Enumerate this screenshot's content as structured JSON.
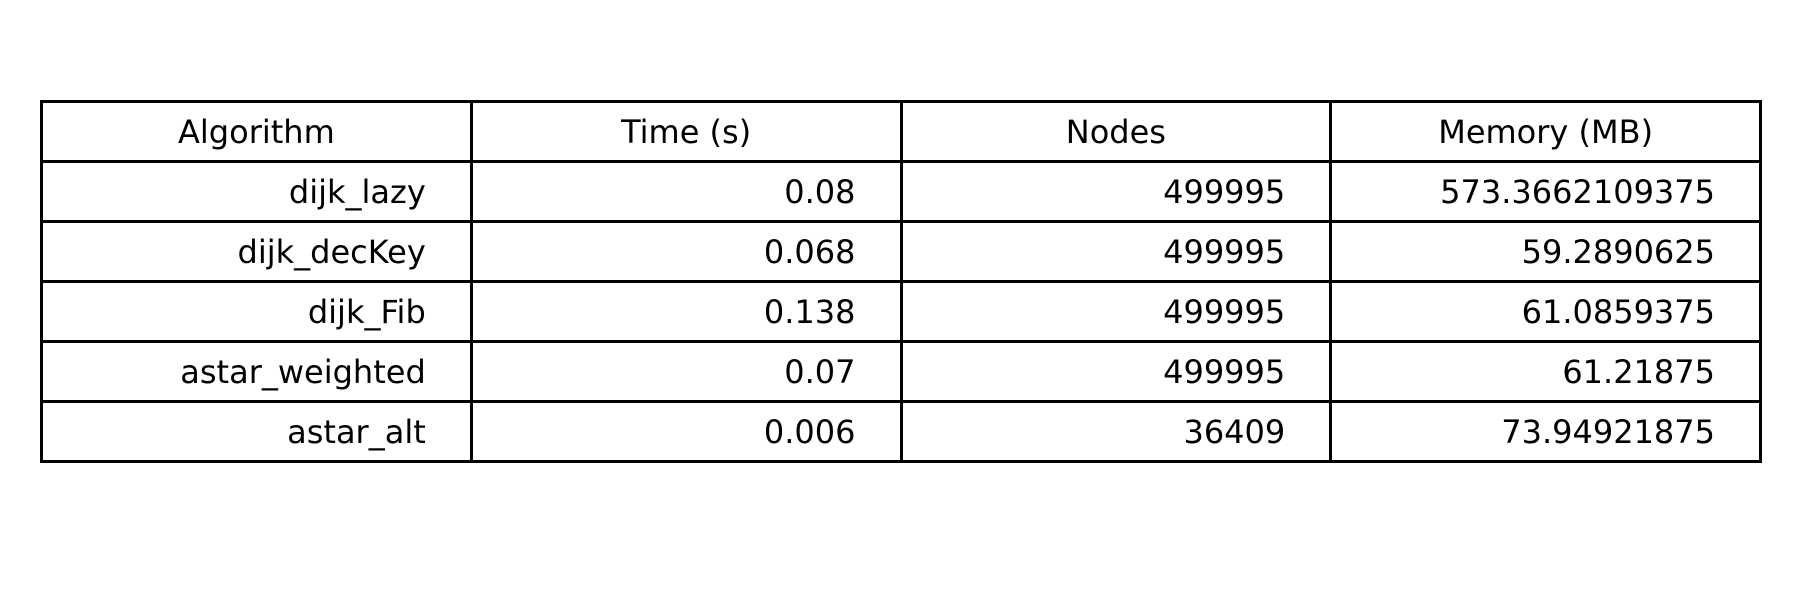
{
  "chart_data": {
    "type": "table",
    "columns": [
      "Algorithm",
      "Time (s)",
      "Nodes",
      "Memory (MB)"
    ],
    "rows": [
      [
        "dijk_lazy",
        "0.08",
        "499995",
        "573.3662109375"
      ],
      [
        "dijk_decKey",
        "0.068",
        "499995",
        "59.2890625"
      ],
      [
        "dijk_Fib",
        "0.138",
        "499995",
        "61.0859375"
      ],
      [
        "astar_weighted",
        "0.07",
        "499995",
        "61.21875"
      ],
      [
        "astar_alt",
        "0.006",
        "36409",
        "73.94921875"
      ]
    ]
  }
}
